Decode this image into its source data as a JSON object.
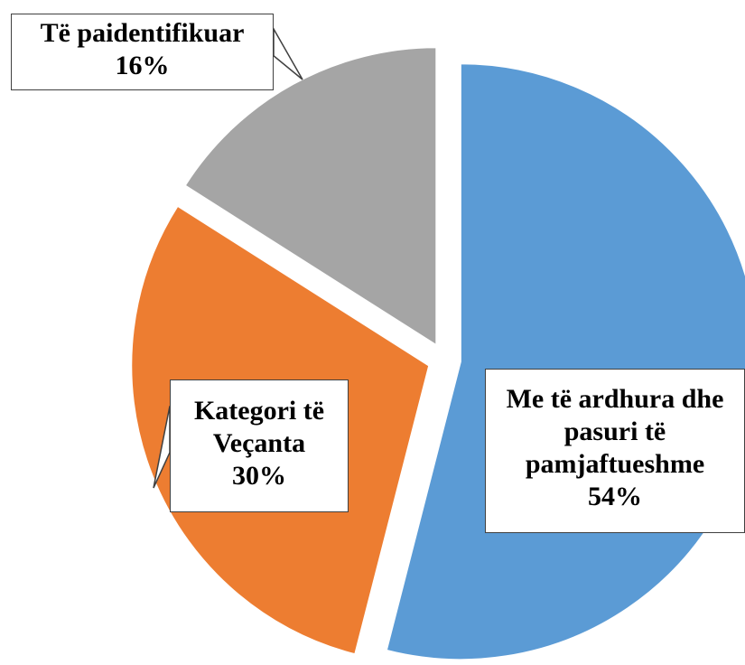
{
  "chart_data": {
    "type": "pie",
    "categories": [
      "Me të ardhura dhe pasuri të pamjaftueshme",
      "Kategori të Veçanta",
      "Të paidentifikuar"
    ],
    "values": [
      54,
      30,
      16
    ],
    "value_labels": [
      "54%",
      "30%",
      "16%"
    ],
    "colors": [
      "#5b9bd5",
      "#ed7d31",
      "#a5a5a5"
    ]
  }
}
